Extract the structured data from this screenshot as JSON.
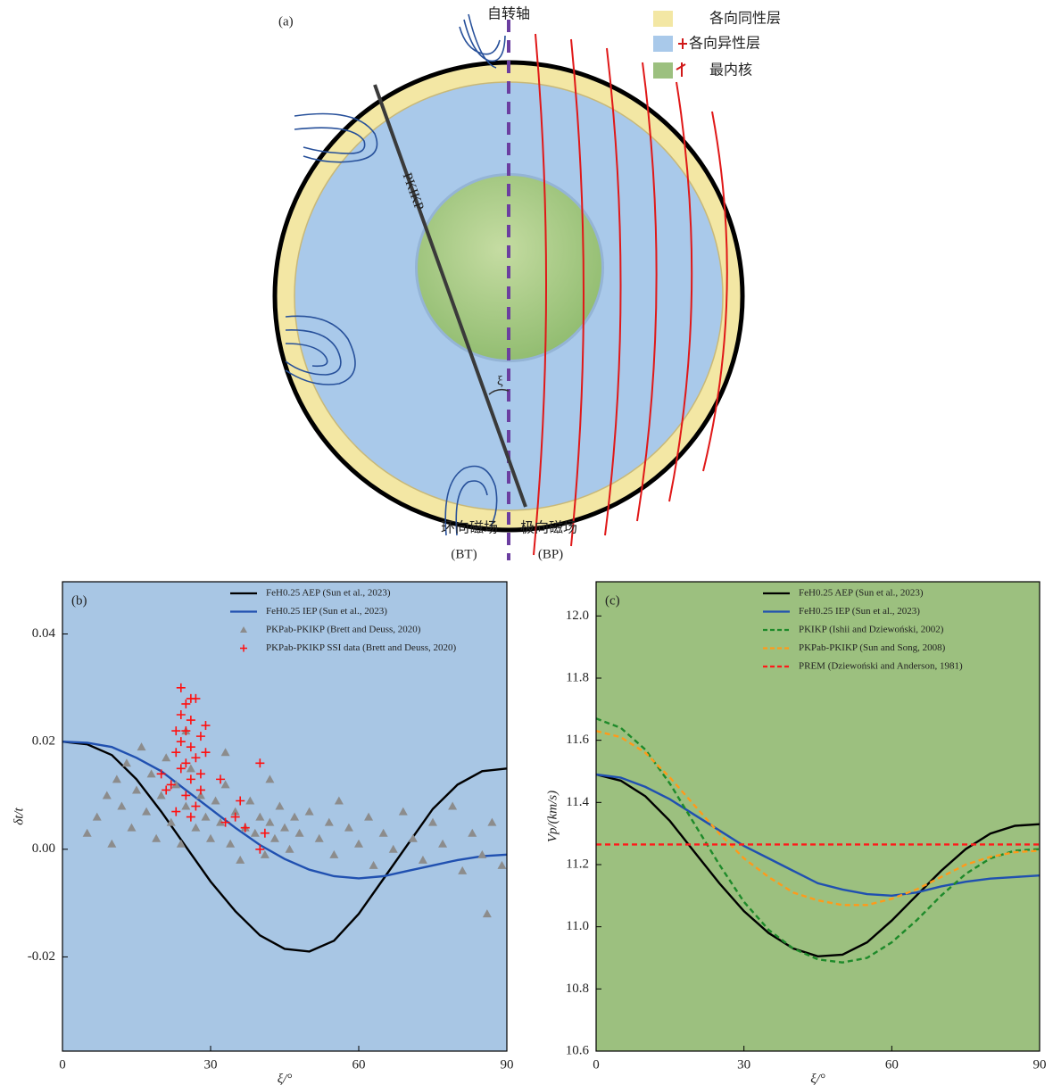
{
  "diagram": {
    "panel_label": "(a)",
    "axis_label": "自转轴",
    "legend": [
      "各向同性层",
      "各向异性层",
      "最内核"
    ],
    "ray_label": "PKIKP",
    "angle_label": "ξ",
    "toroidal": {
      "name": "环向磁场",
      "symbol": "(BT)"
    },
    "poloidal": {
      "name": "极向磁场",
      "symbol": "(BP)"
    }
  },
  "chart_data": [
    {
      "type": "line",
      "panel_label": "(b)",
      "xlabel": "ξ/°",
      "ylabel": "δt/t",
      "background": "#a8c6e4",
      "legend": "upper right",
      "xlim": [
        0,
        90
      ],
      "xticks": [
        0,
        30,
        60,
        90
      ],
      "ylim": [
        -0.0375,
        0.0497
      ],
      "yticks": [
        -0.02,
        {
          "value": 0,
          "label": "0.00"
        },
        0.02,
        0.04
      ],
      "x": [
        0,
        5,
        10,
        15,
        20,
        25,
        30,
        35,
        40,
        45,
        50,
        55,
        60,
        65,
        70,
        75,
        80,
        85,
        90
      ],
      "series": [
        {
          "name": "FeH0.25 AEP (Sun et al., 2023)",
          "color": "#000000",
          "values": [
            0.02,
            0.0195,
            0.0175,
            0.013,
            0.007,
            0.0005,
            -0.006,
            -0.0115,
            -0.016,
            -0.0185,
            -0.019,
            -0.017,
            -0.012,
            -0.0055,
            0.001,
            0.0075,
            0.012,
            0.0145,
            0.015
          ]
        },
        {
          "name": "FeH0.25 IEP (Sun et al., 2023)",
          "color": "#2050b0",
          "values": [
            0.02,
            0.0198,
            0.019,
            0.017,
            0.0145,
            0.011,
            0.0075,
            0.004,
            0.0008,
            -0.0018,
            -0.0038,
            -0.005,
            -0.0054,
            -0.005,
            -0.004,
            -0.003,
            -0.002,
            -0.0013,
            -0.001
          ]
        },
        {
          "name": "PKPab-PKIKP (Brett and Deuss, 2020)",
          "type": "scatter",
          "marker": "triangle",
          "color": "#8c8c8c",
          "x": [
            5,
            7,
            9,
            10,
            11,
            12,
            13,
            14,
            15,
            16,
            17,
            18,
            19,
            20,
            21,
            22,
            23,
            24,
            25,
            26,
            27,
            28,
            29,
            30,
            31,
            32,
            33,
            34,
            35,
            36,
            37,
            38,
            39,
            40,
            41,
            42,
            43,
            44,
            45,
            46,
            47,
            48,
            50,
            52,
            54,
            55,
            56,
            58,
            60,
            62,
            63,
            65,
            67,
            69,
            71,
            73,
            75,
            77,
            79,
            81,
            83,
            85,
            87,
            89,
            86,
            33,
            25,
            42
          ],
          "values": [
            0.003,
            0.006,
            0.01,
            0.001,
            0.013,
            0.008,
            0.016,
            0.004,
            0.011,
            0.019,
            0.007,
            0.014,
            0.002,
            0.01,
            0.017,
            0.005,
            0.012,
            0.001,
            0.008,
            0.015,
            0.004,
            0.01,
            0.006,
            0.002,
            0.009,
            0.005,
            0.012,
            0.001,
            0.007,
            -0.002,
            0.004,
            0.009,
            0.003,
            0.006,
            -0.001,
            0.005,
            0.002,
            0.008,
            0.004,
            0.0,
            0.006,
            0.003,
            0.007,
            0.002,
            0.005,
            -0.001,
            0.009,
            0.004,
            0.001,
            0.006,
            -0.003,
            0.003,
            0.0,
            0.007,
            0.002,
            -0.002,
            0.005,
            0.001,
            0.008,
            -0.004,
            0.003,
            -0.001,
            0.005,
            -0.003,
            -0.012,
            0.018,
            0.022,
            0.013
          ]
        },
        {
          "name": "PKPab-PKIKP SSI data (Brett and Deuss, 2020)",
          "type": "scatter",
          "marker": "cross",
          "color": "#ff1010",
          "x": [
            22,
            23,
            24,
            24,
            24,
            25,
            25,
            25,
            26,
            26,
            26,
            27,
            27,
            27,
            28,
            28,
            29,
            29,
            23,
            24,
            25,
            26,
            23,
            20,
            21,
            32,
            33,
            35,
            36,
            37,
            40,
            40,
            41,
            26,
            28
          ],
          "values": [
            0.012,
            0.018,
            0.025,
            0.03,
            0.015,
            0.022,
            0.01,
            0.027,
            0.019,
            0.013,
            0.024,
            0.017,
            0.028,
            0.008,
            0.021,
            0.014,
            0.023,
            0.018,
            0.007,
            0.02,
            0.016,
            0.006,
            0.022,
            0.014,
            0.011,
            0.013,
            0.005,
            0.006,
            0.009,
            0.004,
            0.016,
            0.0,
            0.003,
            0.028,
            0.011
          ]
        }
      ]
    },
    {
      "type": "line",
      "panel_label": "(c)",
      "xlabel": "ξ/°",
      "ylabel": "Vp/(km/s)",
      "background": "#9cc07f",
      "legend": "upper right",
      "xlim": [
        0,
        90
      ],
      "xticks": [
        0,
        30,
        60,
        90
      ],
      "ylim": [
        10.6,
        12.11
      ],
      "yticks": [
        10.6,
        10.8,
        {
          "value": 11,
          "label": "11.0"
        },
        11.2,
        11.4,
        11.6,
        11.8,
        {
          "value": 12,
          "label": "12.0"
        }
      ],
      "x": [
        0,
        5,
        10,
        15,
        20,
        25,
        30,
        35,
        40,
        45,
        50,
        55,
        60,
        65,
        70,
        75,
        80,
        85,
        90
      ],
      "series": [
        {
          "name": "FeH0.25 AEP (Sun et al., 2023)",
          "color": "#000000",
          "values": [
            11.49,
            11.47,
            11.42,
            11.34,
            11.24,
            11.14,
            11.05,
            10.98,
            10.93,
            10.905,
            10.91,
            10.95,
            11.02,
            11.1,
            11.18,
            11.25,
            11.3,
            11.325,
            11.33
          ]
        },
        {
          "name": "FeH0.25 IEP (Sun et al., 2023)",
          "color": "#2050b0",
          "values": [
            11.49,
            11.48,
            11.45,
            11.41,
            11.36,
            11.31,
            11.26,
            11.22,
            11.18,
            11.14,
            11.12,
            11.105,
            11.1,
            11.11,
            11.13,
            11.145,
            11.155,
            11.16,
            11.165
          ]
        },
        {
          "name": "PKIKP (Ishii and Dziewoński, 2002)",
          "color": "#1e8a2a",
          "dash": true,
          "values": [
            11.67,
            11.64,
            11.57,
            11.46,
            11.33,
            11.2,
            11.08,
            10.99,
            10.93,
            10.895,
            10.885,
            10.9,
            10.95,
            11.02,
            11.1,
            11.17,
            11.22,
            11.245,
            11.25
          ]
        },
        {
          "name": "PKPab-PKIKP (Sun and Song, 2008)",
          "color": "#ff9a1a",
          "dash": true,
          "values": [
            11.63,
            11.61,
            11.56,
            11.48,
            11.39,
            11.3,
            11.22,
            11.16,
            11.11,
            11.085,
            11.07,
            11.07,
            11.09,
            11.12,
            11.16,
            11.2,
            11.225,
            11.24,
            11.245
          ]
        },
        {
          "name": "PREM (Dziewoński and Anderson, 1981)",
          "color": "#ff1a1a",
          "dash": true,
          "values": [
            11.265,
            11.265,
            11.265,
            11.265,
            11.265,
            11.265,
            11.265,
            11.265,
            11.265,
            11.265,
            11.265,
            11.265,
            11.265,
            11.265,
            11.265,
            11.265,
            11.265,
            11.265,
            11.265
          ]
        }
      ]
    }
  ]
}
